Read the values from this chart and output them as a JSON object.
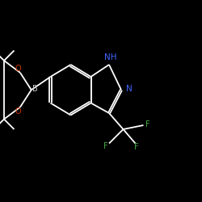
{
  "bg_color": "#000000",
  "bond_color": "#ffffff",
  "bond_lw": 1.3,
  "N_color": "#4466ff",
  "O_color": "#cc3300",
  "F_color": "#44aa44",
  "B_color": "#cccccc",
  "figsize": [
    2.5,
    2.5
  ],
  "dpi": 100,
  "xlim": [
    0,
    10
  ],
  "ylim": [
    0,
    10
  ]
}
